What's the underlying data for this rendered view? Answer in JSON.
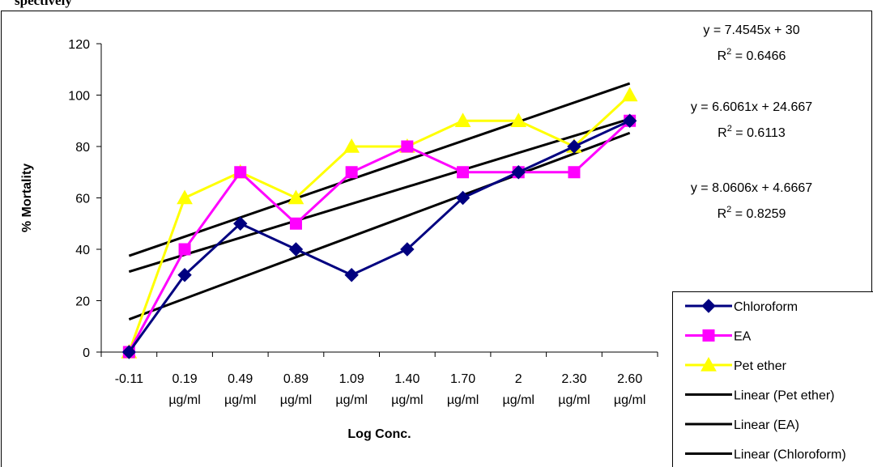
{
  "header": {
    "text": "spectively"
  },
  "chart_data": {
    "type": "line",
    "xlabel": "Log Conc.",
    "ylabel": "% Mortality",
    "ylim": [
      0,
      120
    ],
    "yticks": [
      "0",
      "20",
      "40",
      "60",
      "80",
      "100",
      "120"
    ],
    "categories": [
      {
        "line1": "-0.11",
        "line2": ""
      },
      {
        "line1": "0.19",
        "line2": "µg/ml"
      },
      {
        "line1": "0.49",
        "line2": "µg/ml"
      },
      {
        "line1": "0.89",
        "line2": "µg/ml"
      },
      {
        "line1": "1.09",
        "line2": "µg/ml"
      },
      {
        "line1": "1.40",
        "line2": "µg/ml"
      },
      {
        "line1": "1.70",
        "line2": "µg/ml"
      },
      {
        "line1": "2",
        "line2": "µg/ml"
      },
      {
        "line1": "2.30",
        "line2": "µg/ml"
      },
      {
        "line1": "2.60",
        "line2": "µg/ml"
      }
    ],
    "series": [
      {
        "name": "Chloroform",
        "color": "#000080",
        "marker": "diamond",
        "values": [
          0,
          30,
          50,
          40,
          30,
          40,
          60,
          70,
          80,
          90
        ]
      },
      {
        "name": "EA",
        "color": "#ff00ff",
        "marker": "square",
        "values": [
          0,
          40,
          70,
          50,
          70,
          80,
          70,
          70,
          70,
          90
        ]
      },
      {
        "name": "Pet ether",
        "color": "#ffff00",
        "marker": "triangle",
        "values": [
          0,
          60,
          70,
          60,
          80,
          80,
          90,
          90,
          80,
          100
        ]
      }
    ],
    "trendlines": [
      {
        "name": "Linear (Pet ether)",
        "slope": 7.4545,
        "intercept": 30,
        "color": "#000000"
      },
      {
        "name": "Linear (EA)",
        "slope": 6.6061,
        "intercept": 24.667,
        "color": "#000000"
      },
      {
        "name": "Linear (Chloroform)",
        "slope": 8.0606,
        "intercept": 4.6667,
        "color": "#000000"
      }
    ],
    "equations": [
      {
        "eq": "y = 7.4545x + 30",
        "r2_prefix": "R",
        "r2_sup": "2",
        "r2_value": " = 0.6466"
      },
      {
        "eq": "y = 6.6061x + 24.667",
        "r2_prefix": "R",
        "r2_sup": "2",
        "r2_value": " = 0.6113"
      },
      {
        "eq": "y = 8.0606x + 4.6667",
        "r2_prefix": "R",
        "r2_sup": "2",
        "r2_value": " = 0.8259"
      }
    ],
    "grid": false,
    "legend_position": "bottom-right"
  }
}
